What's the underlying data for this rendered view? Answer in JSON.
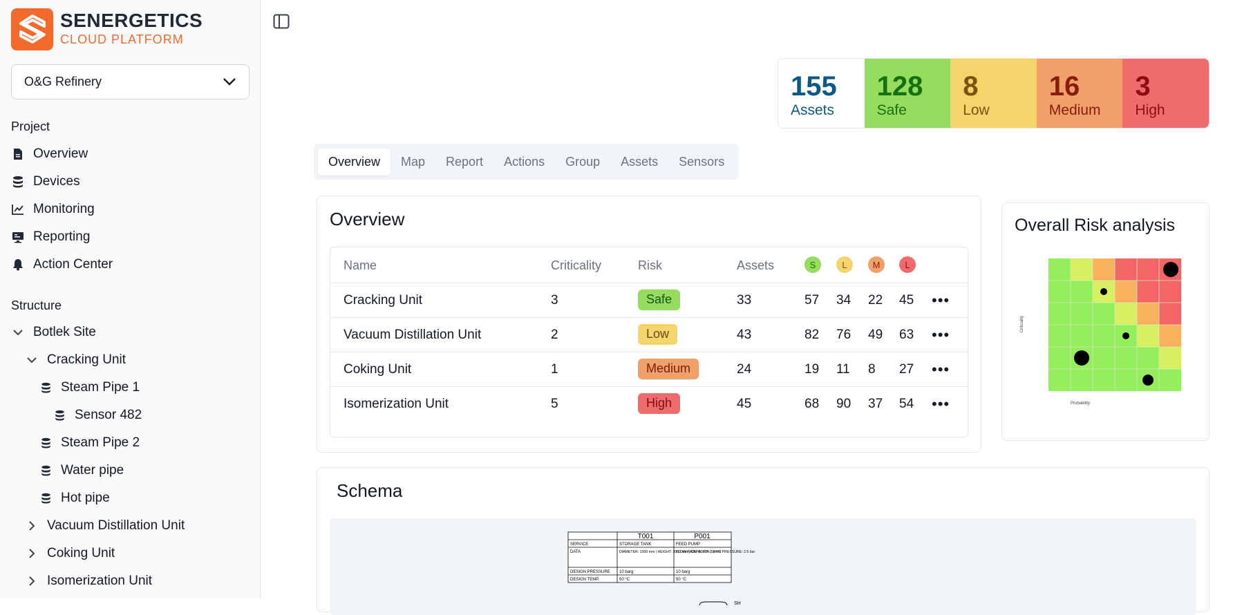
{
  "brand": {
    "name": "SENERGETICS",
    "subtitle": "CLOUD PLATFORM"
  },
  "project_select": {
    "value": "O&G Refinery"
  },
  "sidebar": {
    "project_label": "Project",
    "nav": [
      {
        "label": "Overview",
        "icon": "file-icon"
      },
      {
        "label": "Devices",
        "icon": "database-icon"
      },
      {
        "label": "Monitoring",
        "icon": "line-chart-icon"
      },
      {
        "label": "Reporting",
        "icon": "monitor-icon"
      },
      {
        "label": "Action Center",
        "icon": "bell-icon"
      }
    ],
    "structure_label": "Structure",
    "tree": [
      {
        "label": "Botlek Site",
        "icon": "chevron-down-icon"
      },
      {
        "label": "Cracking Unit",
        "icon": "chevron-down-icon"
      },
      {
        "label": "Steam Pipe 1",
        "icon": "database-icon"
      },
      {
        "label": "Sensor 482",
        "icon": "database-icon"
      },
      {
        "label": "Steam Pipe 2",
        "icon": "database-icon"
      },
      {
        "label": "Water pipe",
        "icon": "database-icon"
      },
      {
        "label": "Hot pipe",
        "icon": "database-icon"
      },
      {
        "label": "Vacuum Distillation Unit",
        "icon": "chevron-right-icon"
      },
      {
        "label": "Coking Unit",
        "icon": "chevron-right-icon"
      },
      {
        "label": "Isomerization Unit",
        "icon": "chevron-right-icon"
      }
    ]
  },
  "stats": [
    {
      "value": "155",
      "label": "Assets",
      "bg": "#ffffff",
      "fg": "#0c5a84"
    },
    {
      "value": "128",
      "label": "Safe",
      "bg": "#95dc5f",
      "fg": "#15700f"
    },
    {
      "value": "8",
      "label": "Low",
      "bg": "#f3d56c",
      "fg": "#7a5212"
    },
    {
      "value": "16",
      "label": "Medium",
      "bg": "#f2a06a",
      "fg": "#8a1c0e"
    },
    {
      "value": "3",
      "label": "High",
      "bg": "#f06b6b",
      "fg": "#8a0f14"
    }
  ],
  "tabs": [
    "Overview",
    "Map",
    "Report",
    "Actions",
    "Group",
    "Assets",
    "Sensors"
  ],
  "overview": {
    "title": "Overview",
    "columns": [
      "Name",
      "Criticality",
      "Risk",
      "Assets"
    ],
    "chips": [
      {
        "letter": "S",
        "bg": "#95dc5f",
        "fg": "#15700f"
      },
      {
        "letter": "L",
        "bg": "#f3d56c",
        "fg": "#7a5212"
      },
      {
        "letter": "M",
        "bg": "#f2a06a",
        "fg": "#8a1c0e"
      },
      {
        "letter": "L",
        "bg": "#f06b6b",
        "fg": "#8a0f14"
      }
    ],
    "rows": [
      {
        "name": "Cracking Unit",
        "criticality": "3",
        "risk": "Safe",
        "assets": "33",
        "s": "57",
        "l": "34",
        "m": "22",
        "h": "45"
      },
      {
        "name": "Vacuum Distillation Unit",
        "criticality": "2",
        "risk": "Low",
        "assets": "43",
        "s": "82",
        "l": "76",
        "m": "49",
        "h": "63"
      },
      {
        "name": "Coking Unit",
        "criticality": "1",
        "risk": "Medium",
        "assets": "24",
        "s": "19",
        "l": "11",
        "m": "8",
        "h": "27"
      },
      {
        "name": "Isomerization Unit",
        "criticality": "5",
        "risk": "High",
        "assets": "45",
        "s": "68",
        "l": "90",
        "m": "37",
        "h": "54"
      }
    ],
    "risk_colors": {
      "Safe": "#95dc5f",
      "Low": "#f3d56c",
      "Medium": "#f2a06a",
      "High": "#f06b6b"
    }
  },
  "risk_analysis": {
    "title": "Overall Risk analysis",
    "y_label": "Criticality",
    "x_label": "Probability",
    "colors": {
      "green": "#95ee5c",
      "yellow": "#d8f060",
      "orange": "#f8b25e",
      "red": "#f46565"
    }
  },
  "schema": {
    "title": "Schema",
    "table": {
      "headers": [
        "",
        "T001",
        "P001"
      ],
      "rows": [
        [
          "SERVICE",
          "STORAGE TANK",
          "FEED PUMP"
        ],
        [
          "DATA",
          "DIAMETER: 1000 mm | HEIGHT: 3000 mm | CAPACITY: 2.4 m3",
          "FLOW RATE: 5 m3/h | DIFF. PRESSURE: 2.5 bar"
        ],
        [
          "DESIGN PRESSURE",
          "10 barg",
          "10 barg"
        ],
        [
          "DESIGN TEMP.",
          "50 °C",
          "50 °C"
        ]
      ]
    },
    "footer_fragment": "SH"
  }
}
